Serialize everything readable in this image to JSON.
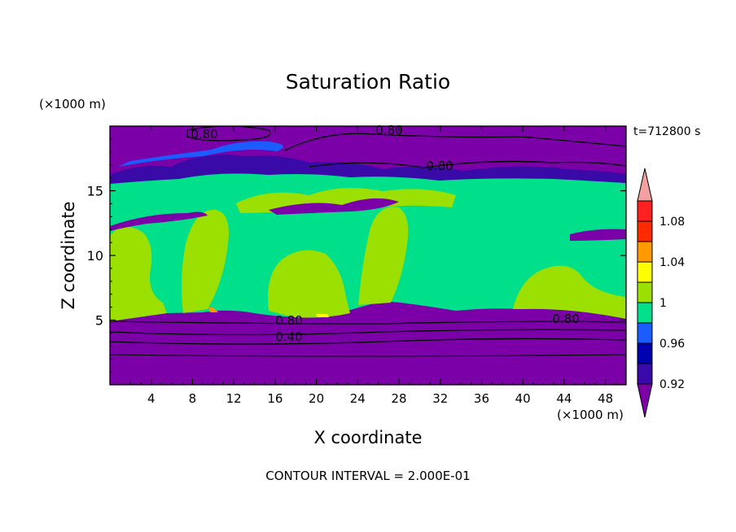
{
  "chart_data": {
    "type": "heatmap",
    "title": "Saturation Ratio",
    "xlabel": "X coordinate",
    "ylabel": "Z coordinate",
    "x_unit": "(×1000 m)",
    "y_unit": "(×1000 m)",
    "time_label": "t=712800 s",
    "footer": "CONTOUR INTERVAL = 2.000E-01",
    "xlim": [
      0,
      50
    ],
    "ylim": [
      0,
      20
    ],
    "x_ticks": [
      4,
      8,
      12,
      16,
      20,
      24,
      28,
      32,
      36,
      40,
      44,
      48
    ],
    "y_ticks": [
      5,
      10,
      15
    ],
    "colorbar": {
      "tick_labels": [
        "0.92",
        "0.96",
        "1",
        "1.04",
        "1.08"
      ],
      "levels": [
        0.92,
        0.94,
        0.96,
        0.98,
        1.0,
        1.02,
        1.04,
        1.06,
        1.08,
        1.1
      ],
      "colors": [
        "#7b00a8",
        "#3a0aa8",
        "#0000b0",
        "#1a5cff",
        "#00e08a",
        "#9be000",
        "#ffff00",
        "#ff9900",
        "#ff2a00",
        "#ff2020",
        "#f4a0a0"
      ]
    },
    "contour_labels": [
      "0.80",
      "0.80",
      "0.80",
      "0.80",
      "0.80",
      "0.40"
    ],
    "regions": {
      "below_cloud_color": "#7b00a8",
      "upper_layer_color": "#7b00a8"
    }
  }
}
